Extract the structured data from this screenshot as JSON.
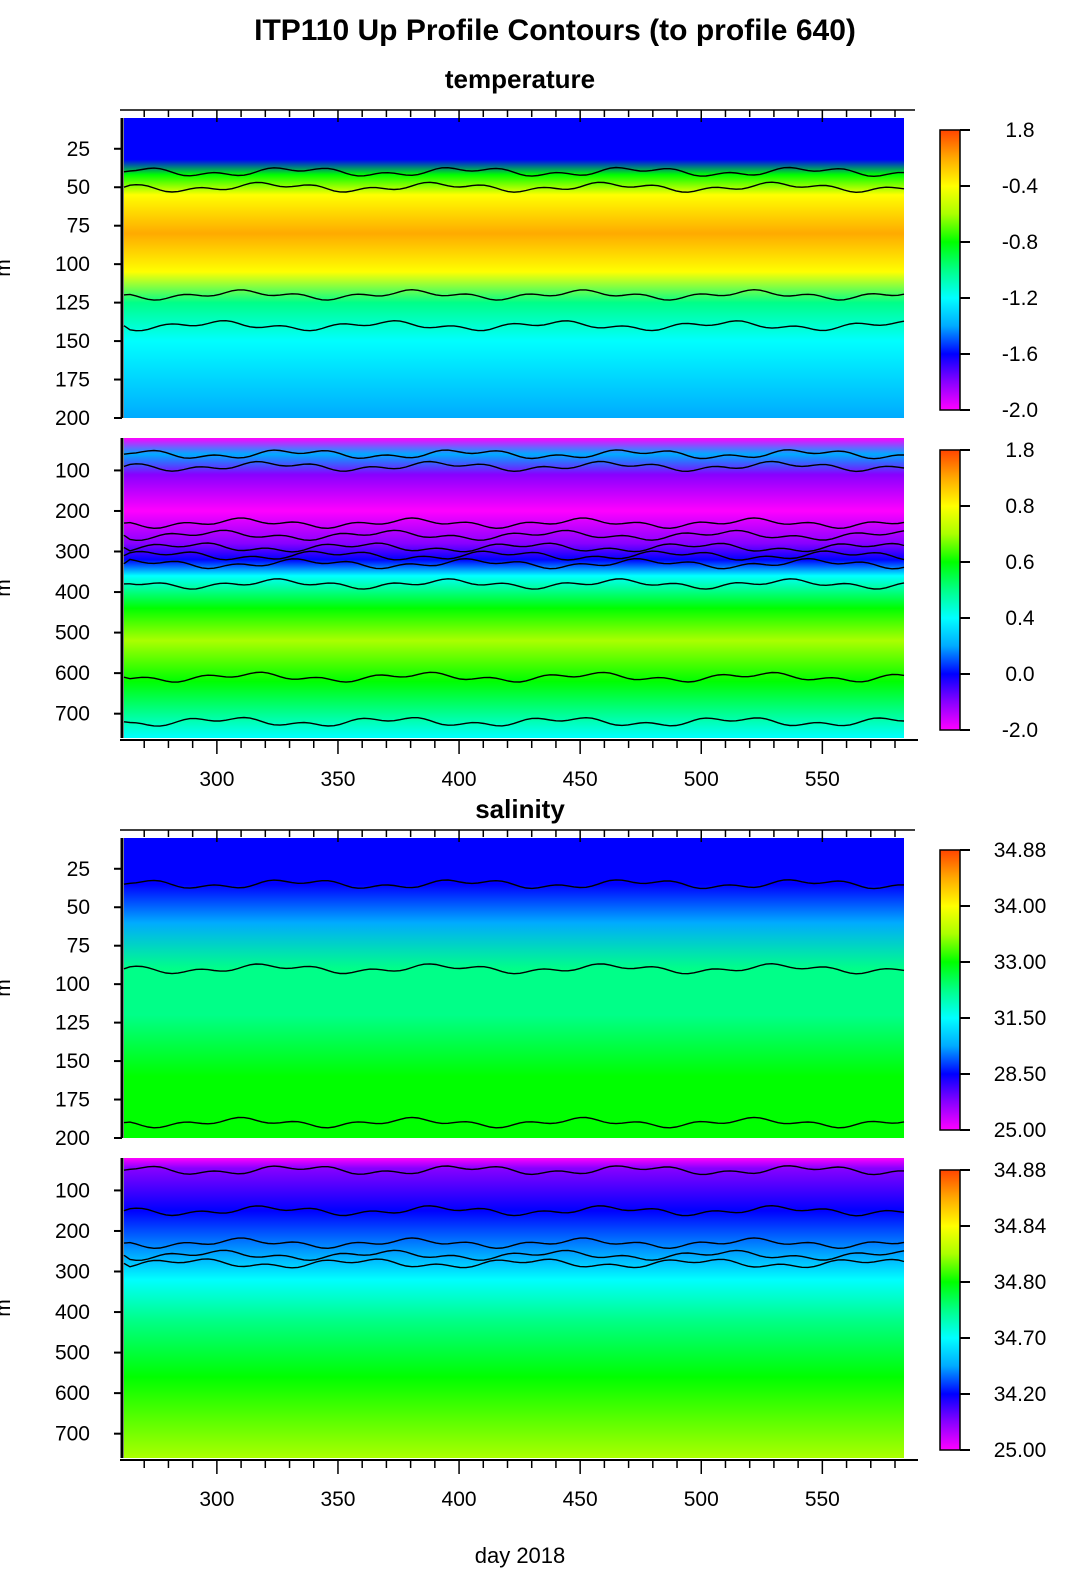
{
  "figure": {
    "title": "ITP110 Up Profile Contours (to profile 640)",
    "xlabel": "day 2018",
    "ylabel": "m"
  },
  "colors": {
    "colormap": [
      "#ff00ff",
      "#8800ff",
      "#0000ff",
      "#00aaff",
      "#00ffff",
      "#00ff88",
      "#00ff00",
      "#aaff00",
      "#ffff00",
      "#ffaa00",
      "#ff4400"
    ],
    "contour": "#000000"
  },
  "chart_data": [
    {
      "type": "heatmap",
      "variable": "temperature",
      "section_title": "temperature",
      "x_ticks": [
        300,
        350,
        400,
        450,
        500,
        550
      ],
      "xlim": [
        260,
        590
      ],
      "x_end": 582,
      "ylim": [
        5,
        200
      ],
      "y_ticks": [
        25,
        50,
        75,
        100,
        125,
        150,
        175,
        200
      ],
      "colorbar_ticks": [
        "1.8",
        "-0.4",
        "-0.8",
        "-1.2",
        "-1.6",
        "-2.0"
      ],
      "layers": [
        {
          "depth": 5,
          "level": 2.0
        },
        {
          "depth": 32,
          "level": 2.2
        },
        {
          "depth": 42,
          "level": 5.5
        },
        {
          "depth": 55,
          "level": 8.0
        },
        {
          "depth": 80,
          "level": 9.3
        },
        {
          "depth": 105,
          "level": 8.2
        },
        {
          "depth": 125,
          "level": 5.3
        },
        {
          "depth": 150,
          "level": 3.6
        },
        {
          "depth": 200,
          "level": 3.0
        }
      ],
      "contour_depths": [
        40,
        50,
        120,
        140
      ]
    },
    {
      "type": "heatmap",
      "variable": "temperature",
      "section_title": "",
      "x_ticks": [
        300,
        350,
        400,
        450,
        500,
        550
      ],
      "xlim": [
        260,
        590
      ],
      "x_end": 582,
      "ylim": [
        20,
        760
      ],
      "y_ticks": [
        100,
        200,
        300,
        400,
        500,
        600,
        700
      ],
      "colorbar_ticks": [
        "1.8",
        "0.8",
        "0.6",
        "0.4",
        "0.0",
        "-2.0"
      ],
      "layers": [
        {
          "depth": 20,
          "level": 0.3
        },
        {
          "depth": 60,
          "level": 2.6
        },
        {
          "depth": 110,
          "level": 0.6
        },
        {
          "depth": 200,
          "level": 0.4
        },
        {
          "depth": 280,
          "level": 1.4
        },
        {
          "depth": 320,
          "level": 2.2
        },
        {
          "depth": 360,
          "level": 4.0
        },
        {
          "depth": 440,
          "level": 6.2
        },
        {
          "depth": 520,
          "level": 7.4
        },
        {
          "depth": 620,
          "level": 6.0
        },
        {
          "depth": 760,
          "level": 4.0
        }
      ],
      "contour_depths": [
        60,
        90,
        230,
        260,
        290,
        310,
        330,
        380,
        610,
        720
      ]
    },
    {
      "type": "heatmap",
      "variable": "salinity",
      "section_title": "salinity",
      "x_ticks": [
        300,
        350,
        400,
        450,
        500,
        550
      ],
      "xlim": [
        260,
        590
      ],
      "x_end": 582,
      "ylim": [
        5,
        200
      ],
      "y_ticks": [
        25,
        50,
        75,
        100,
        125,
        150,
        175,
        200
      ],
      "colorbar_ticks": [
        "34.88",
        "34.00",
        "33.00",
        "31.50",
        "28.50",
        "25.00"
      ],
      "layers": [
        {
          "depth": 5,
          "level": 1.8
        },
        {
          "depth": 35,
          "level": 2.0
        },
        {
          "depth": 60,
          "level": 3.2
        },
        {
          "depth": 90,
          "level": 4.5
        },
        {
          "depth": 120,
          "level": 5.2
        },
        {
          "depth": 160,
          "level": 5.8
        },
        {
          "depth": 200,
          "level": 6.1
        }
      ],
      "contour_depths": [
        35,
        90,
        190
      ]
    },
    {
      "type": "heatmap",
      "variable": "salinity",
      "section_title": "",
      "x_ticks": [
        300,
        350,
        400,
        450,
        500,
        550
      ],
      "xlim": [
        260,
        590
      ],
      "x_end": 582,
      "ylim": [
        20,
        760
      ],
      "y_ticks": [
        100,
        200,
        300,
        400,
        500,
        600,
        700
      ],
      "colorbar_ticks": [
        "34.88",
        "34.84",
        "34.80",
        "34.70",
        "34.20",
        "25.00"
      ],
      "layers": [
        {
          "depth": 20,
          "level": 0.2
        },
        {
          "depth": 45,
          "level": 1.2
        },
        {
          "depth": 150,
          "level": 1.8
        },
        {
          "depth": 260,
          "level": 2.6
        },
        {
          "depth": 320,
          "level": 3.6
        },
        {
          "depth": 420,
          "level": 5.2
        },
        {
          "depth": 560,
          "level": 6.3
        },
        {
          "depth": 760,
          "level": 6.6
        }
      ],
      "contour_depths": [
        50,
        150,
        230,
        260,
        280
      ]
    }
  ]
}
